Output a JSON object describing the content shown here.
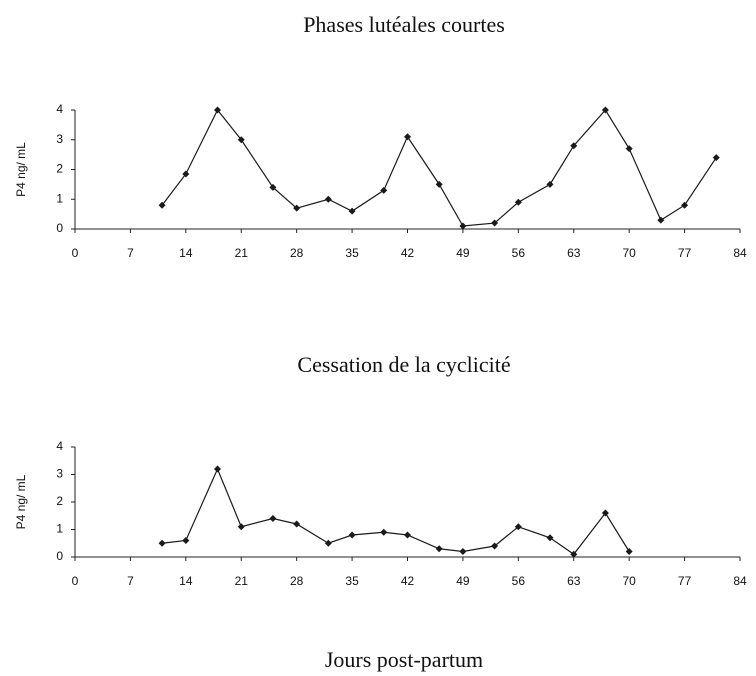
{
  "chart_data": [
    {
      "type": "line",
      "title": "Phases lutéales courtes",
      "y_label": "P4 ng/ mL",
      "x": [
        11,
        14,
        18,
        21,
        25,
        28,
        32,
        35,
        39,
        42,
        46,
        49,
        53,
        56,
        60,
        63,
        67,
        70,
        74,
        77,
        81
      ],
      "series": [
        {
          "color": "#1a1a1a",
          "values": [
            0.8,
            1.85,
            4.0,
            3.0,
            1.4,
            0.7,
            1.0,
            0.6,
            1.3,
            3.1,
            1.5,
            0.1,
            0.2,
            0.9,
            1.5,
            2.8,
            4.0,
            2.7,
            0.3,
            0.8,
            2.4
          ]
        }
      ],
      "xlim": [
        0,
        84
      ],
      "xticks": [
        0,
        7,
        14,
        21,
        28,
        35,
        42,
        49,
        56,
        63,
        70,
        77,
        84
      ],
      "ylim": [
        0,
        4
      ],
      "yticks": [
        0,
        1,
        2,
        3,
        4
      ],
      "grid": false
    },
    {
      "type": "line",
      "title": "Cessation de la cyclicité",
      "y_label": "P4 ng/ mL",
      "x_label": "Jours post-partum",
      "x": [
        11,
        14,
        18,
        21,
        25,
        28,
        32,
        35,
        39,
        42,
        46,
        49,
        53,
        56,
        60,
        63,
        67,
        70
      ],
      "series": [
        {
          "color": "#1a1a1a",
          "values": [
            0.5,
            0.6,
            3.2,
            1.1,
            1.4,
            1.2,
            0.5,
            0.8,
            0.9,
            0.8,
            0.3,
            0.2,
            0.4,
            1.1,
            0.7,
            0.1,
            1.6,
            0.2
          ]
        }
      ],
      "xlim": [
        0,
        84
      ],
      "xticks": [
        0,
        7,
        14,
        21,
        28,
        35,
        42,
        49,
        56,
        63,
        70,
        77,
        84
      ],
      "ylim": [
        0,
        4
      ],
      "yticks": [
        0,
        1,
        2,
        3,
        4
      ],
      "grid": false
    }
  ]
}
